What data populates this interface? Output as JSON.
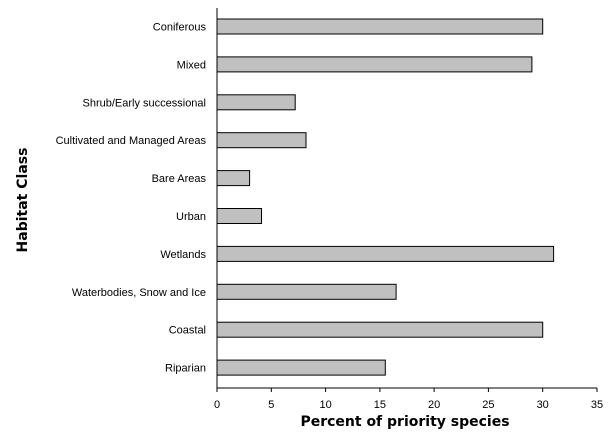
{
  "chart_data": {
    "type": "bar",
    "orientation": "horizontal",
    "title": "",
    "xlabel": "Percent of priority species",
    "ylabel": "Habitat Class",
    "categories": [
      "Coniferous",
      "Mixed",
      "Shrub/Early successional",
      "Cultivated and Managed Areas",
      "Bare Areas",
      "Urban",
      "Wetlands",
      "Waterbodies, Snow and Ice",
      "Coastal",
      "Riparian"
    ],
    "values": [
      30,
      29,
      7.2,
      8.2,
      3,
      4.1,
      31,
      16.5,
      30,
      15.5
    ],
    "xlim": [
      0,
      35
    ],
    "xticks": [
      0,
      5,
      10,
      15,
      20,
      25,
      30,
      35
    ],
    "grid": false,
    "bar_color": "#c0c0c0",
    "edge_color": "#000000"
  }
}
